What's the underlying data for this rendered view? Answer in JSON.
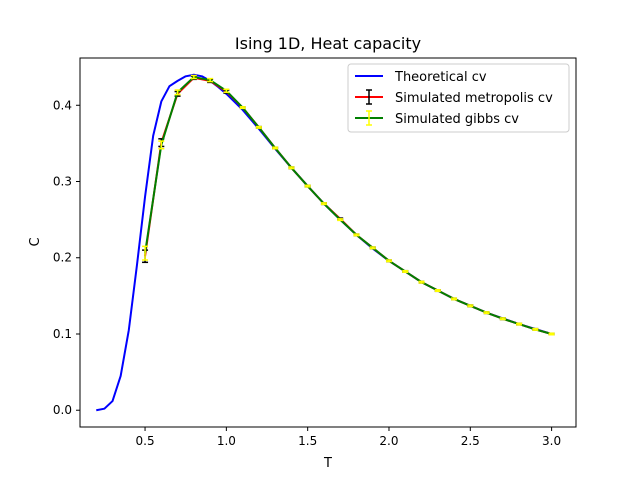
{
  "chart_data": {
    "type": "line",
    "title": "Ising 1D, Heat capacity",
    "xlabel": "T",
    "ylabel": "C",
    "xlim": [
      0.1,
      3.15
    ],
    "ylim": [
      -0.022,
      0.462
    ],
    "xticks": [
      0.5,
      1.0,
      1.5,
      2.0,
      2.5,
      3.0
    ],
    "xtick_labels": [
      "0.5",
      "1.0",
      "1.5",
      "2.0",
      "2.5",
      "3.0"
    ],
    "yticks": [
      0.0,
      0.1,
      0.2,
      0.3,
      0.4
    ],
    "ytick_labels": [
      "0.0",
      "0.1",
      "0.2",
      "0.3",
      "0.4"
    ],
    "legend_position": "top-right",
    "series": [
      {
        "name": "Theoretical cv",
        "color": "#0000ff",
        "style": "line",
        "x": [
          0.2,
          0.25,
          0.3,
          0.35,
          0.4,
          0.45,
          0.5,
          0.55,
          0.6,
          0.65,
          0.7,
          0.75,
          0.8,
          0.85,
          0.9,
          0.95,
          1.0,
          1.1,
          1.2,
          1.3,
          1.4,
          1.5,
          1.6,
          1.7,
          1.8,
          1.9,
          2.0,
          2.2,
          2.4,
          2.6,
          2.8,
          3.0
        ],
        "y": [
          0.0,
          0.002,
          0.012,
          0.045,
          0.105,
          0.19,
          0.28,
          0.36,
          0.405,
          0.425,
          0.432,
          0.438,
          0.44,
          0.438,
          0.432,
          0.424,
          0.415,
          0.394,
          0.369,
          0.343,
          0.318,
          0.294,
          0.271,
          0.25,
          0.23,
          0.212,
          0.196,
          0.168,
          0.146,
          0.128,
          0.113,
          0.1
        ]
      },
      {
        "name": "Simulated metropolis cv",
        "color": "#ff0000",
        "errcolor": "#000000",
        "style": "errorbar",
        "x": [
          0.5,
          0.6,
          0.7,
          0.8,
          0.9,
          1.0,
          1.1,
          1.2,
          1.3,
          1.4,
          1.5,
          1.6,
          1.7,
          1.8,
          1.9,
          2.0,
          2.1,
          2.2,
          2.3,
          2.4,
          2.5,
          2.6,
          2.7,
          2.8,
          2.9,
          3.0
        ],
        "y": [
          0.202,
          0.351,
          0.415,
          0.436,
          0.432,
          0.418,
          0.397,
          0.371,
          0.344,
          0.318,
          0.294,
          0.271,
          0.251,
          0.23,
          0.213,
          0.196,
          0.182,
          0.168,
          0.157,
          0.146,
          0.137,
          0.128,
          0.12,
          0.113,
          0.106,
          0.1
        ],
        "err": [
          0.008,
          0.005,
          0.003,
          0.002,
          0.002,
          0.002,
          0.001,
          0.001,
          0.001,
          0.001,
          0.001,
          0.001,
          0.001,
          0.001,
          0.001,
          0.001,
          0.001,
          0.001,
          0.001,
          0.001,
          0.001,
          0.001,
          0.001,
          0.001,
          0.001,
          0.001
        ]
      },
      {
        "name": "Simulated gibbs cv",
        "color": "#008000",
        "errcolor": "#ffff00",
        "style": "errorbar",
        "x": [
          0.5,
          0.6,
          0.7,
          0.8,
          0.9,
          1.0,
          1.1,
          1.2,
          1.3,
          1.4,
          1.5,
          1.6,
          1.7,
          1.8,
          1.9,
          2.0,
          2.1,
          2.2,
          2.3,
          2.4,
          2.5,
          2.6,
          2.7,
          2.8,
          2.9,
          3.0
        ],
        "y": [
          0.206,
          0.348,
          0.417,
          0.437,
          0.433,
          0.419,
          0.397,
          0.371,
          0.344,
          0.318,
          0.294,
          0.271,
          0.25,
          0.23,
          0.213,
          0.196,
          0.182,
          0.168,
          0.157,
          0.146,
          0.137,
          0.128,
          0.12,
          0.113,
          0.106,
          0.1
        ],
        "err": [
          0.009,
          0.005,
          0.003,
          0.002,
          0.002,
          0.002,
          0.001,
          0.001,
          0.001,
          0.001,
          0.001,
          0.001,
          0.001,
          0.001,
          0.001,
          0.001,
          0.001,
          0.001,
          0.001,
          0.001,
          0.001,
          0.001,
          0.001,
          0.001,
          0.001,
          0.001
        ]
      }
    ]
  }
}
